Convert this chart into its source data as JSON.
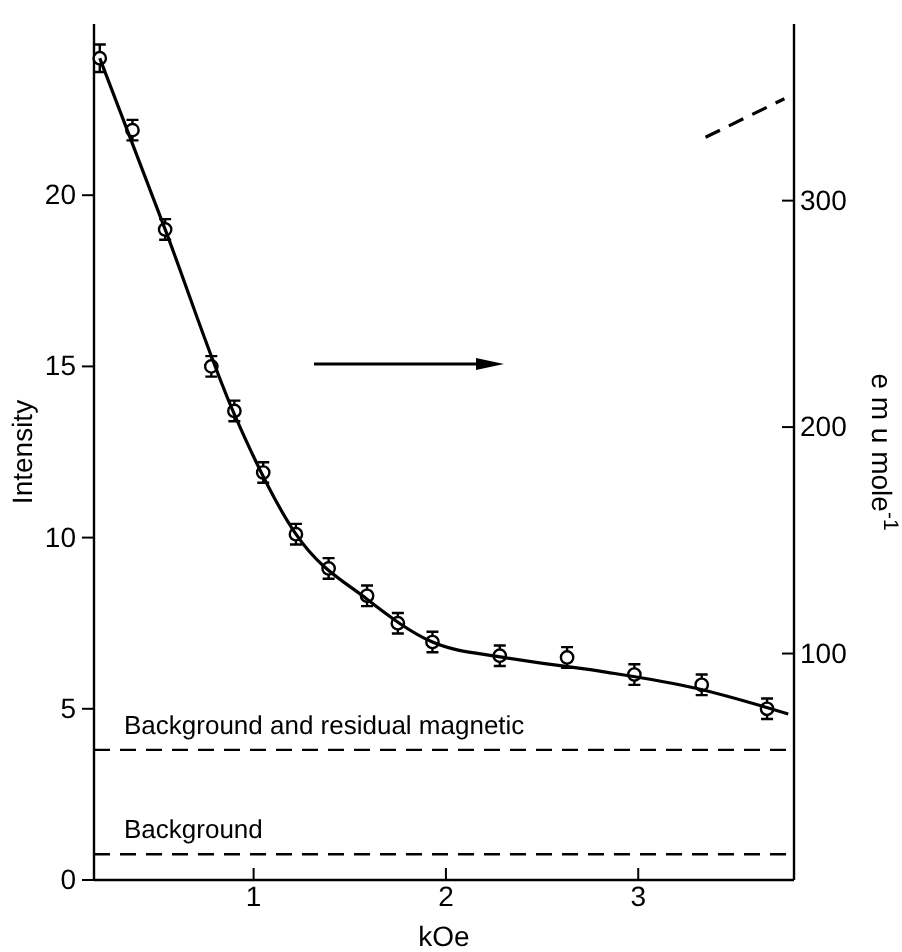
{
  "chart_data": {
    "type": "scatter",
    "xlabel": "kOe",
    "ylabel": "Intensity",
    "y2label": "e m u mole$^{-1}$",
    "xlim": [
      0.17,
      3.81
    ],
    "xticks": [
      1,
      2,
      3
    ],
    "ylim": [
      0,
      25
    ],
    "yticks": [
      0,
      5,
      10,
      15,
      20
    ],
    "y2lim": [
      0,
      378
    ],
    "y2ticks": [
      100,
      200,
      300
    ],
    "grid": false,
    "marker": "circle",
    "series": [
      {
        "color": "#000000",
        "x": [
          0.2,
          0.37,
          0.54,
          0.78,
          0.9,
          1.05,
          1.22,
          1.39,
          1.59,
          1.75,
          1.93,
          2.28,
          2.63,
          2.98,
          3.33,
          3.67
        ],
        "values": [
          24.0,
          21.9,
          19.0,
          15.0,
          13.7,
          11.9,
          10.1,
          9.1,
          8.3,
          7.5,
          6.95,
          6.55,
          6.5,
          6.0,
          5.7,
          5.0
        ],
        "errors": [
          0.4,
          0.3,
          0.3,
          0.3,
          0.3,
          0.3,
          0.3,
          0.3,
          0.3,
          0.3,
          0.3,
          0.3,
          0.3,
          0.3,
          0.3,
          0.3
        ]
      },
      {
        "type": "line",
        "color": "#000000",
        "marker": "none",
        "line_style": "solid",
        "x": [
          0.2,
          0.54,
          0.9,
          1.22,
          1.59,
          1.93,
          2.3,
          2.8,
          3.3,
          3.78
        ],
        "values": [
          24.0,
          19.0,
          13.6,
          10.1,
          8.2,
          6.95,
          6.5,
          6.1,
          5.6,
          4.85
        ]
      },
      {
        "type": "line",
        "color": "#000000",
        "marker": "none",
        "line_style": "dashed",
        "axis": "y2",
        "x": [
          3.35,
          3.76
        ],
        "values": [
          328,
          345
        ]
      }
    ],
    "ref_lines": [
      {
        "axis": "y",
        "value": 3.8,
        "label": "Background and residual magnetic",
        "line_style": "dashed",
        "color": "#000000"
      },
      {
        "axis": "y",
        "value": 0.75,
        "label": "Background",
        "line_style": "dashed",
        "color": "#000000"
      }
    ]
  }
}
